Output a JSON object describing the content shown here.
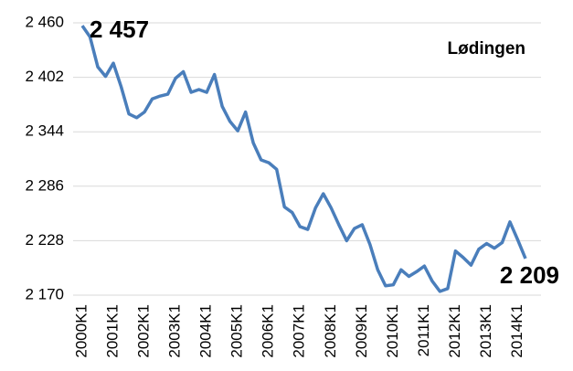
{
  "chart_data": {
    "type": "line",
    "title": "Lødingen",
    "categories": [
      "2000K1",
      null,
      null,
      null,
      "2001K1",
      null,
      null,
      null,
      "2002K1",
      null,
      null,
      null,
      "2003K1",
      null,
      null,
      null,
      "2004K1",
      null,
      null,
      null,
      "2005K1",
      null,
      null,
      null,
      "2006K1",
      null,
      null,
      null,
      "2007K1",
      null,
      null,
      null,
      "2008K1",
      null,
      null,
      null,
      "2009K1",
      null,
      null,
      null,
      "2010K1",
      null,
      null,
      null,
      "2011K1",
      null,
      null,
      null,
      "2012K1",
      null,
      null,
      null,
      "2013K1",
      null,
      null,
      null,
      "2014K1",
      null
    ],
    "series": [
      {
        "name": "Lødingen",
        "color": "#4a7ebb",
        "values": [
          2457,
          2445,
          2413,
          2403,
          2417,
          2392,
          2363,
          2359,
          2365,
          2379,
          2382,
          2384,
          2401,
          2408,
          2386,
          2389,
          2386,
          2405,
          2371,
          2355,
          2345,
          2365,
          2332,
          2314,
          2311,
          2304,
          2264,
          2258,
          2243,
          2240,
          2263,
          2278,
          2263,
          2245,
          2228,
          2241,
          2245,
          2224,
          2197,
          2180,
          2181,
          2197,
          2190,
          2195,
          2201,
          2185,
          2174,
          2177,
          2217,
          2210,
          2202,
          2219,
          2225,
          2220,
          2226,
          2248,
          2229,
          2209
        ],
        "value_labels": [
          "2 457",
          null,
          null,
          null,
          null,
          null,
          null,
          null,
          null,
          null,
          null,
          null,
          null,
          null,
          null,
          null,
          null,
          null,
          null,
          null,
          null,
          null,
          null,
          null,
          null,
          null,
          null,
          null,
          null,
          null,
          null,
          null,
          null,
          null,
          null,
          null,
          null,
          null,
          null,
          null,
          null,
          null,
          null,
          null,
          null,
          null,
          null,
          null,
          null,
          null,
          null,
          null,
          null,
          null,
          null,
          null,
          null,
          "2 209"
        ]
      }
    ],
    "ylim": [
      2170,
      2460
    ],
    "yticks": [
      {
        "value": 2170,
        "label": "2 170"
      },
      {
        "value": 2228,
        "label": "2 228"
      },
      {
        "value": 2286,
        "label": "2 286"
      },
      {
        "value": 2344,
        "label": "2 344"
      },
      {
        "value": 2402,
        "label": "2 402"
      },
      {
        "value": 2460,
        "label": "2 460"
      }
    ],
    "grid": true
  }
}
